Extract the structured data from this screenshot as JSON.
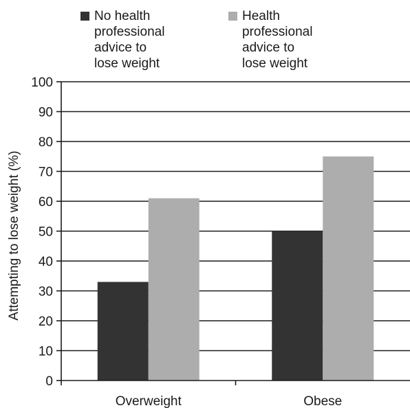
{
  "chart_data": {
    "type": "bar",
    "categories": [
      "Overweight",
      "Obese"
    ],
    "series": [
      {
        "name": "No health\nprofessional\nadvice to\nlose weight",
        "values": [
          33,
          50
        ],
        "color": "#333333"
      },
      {
        "name": "Health\nprofessional\nadvice to\nlose weight",
        "values": [
          61,
          75
        ],
        "color": "#adadad"
      }
    ],
    "ylabel": "Attempting to lose weight (%)",
    "ylim": [
      0,
      100
    ],
    "yticks": [
      0,
      10,
      20,
      30,
      40,
      50,
      60,
      70,
      80,
      90,
      100
    ],
    "grid": true,
    "legend_position": "top"
  }
}
